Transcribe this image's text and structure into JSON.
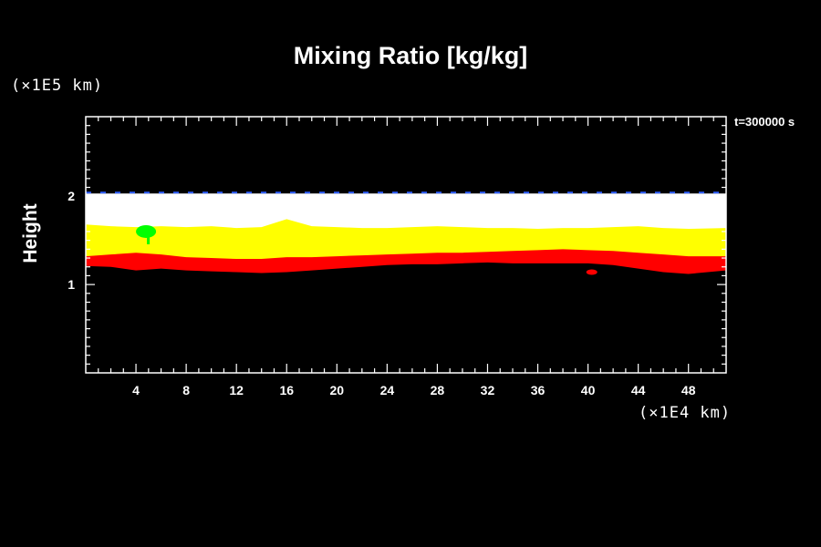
{
  "chart_data": {
    "type": "heatmap",
    "title": "Mixing Ratio [kg/kg]",
    "xlabel": "",
    "ylabel": "Height",
    "x_unit": "(×1E4 km)",
    "y_unit": "(×1E5 km)",
    "time_label": "t=300000 s",
    "xlim": [
      0,
      51
    ],
    "ylim": [
      0,
      2.9
    ],
    "x_ticks": [
      4,
      8,
      12,
      16,
      20,
      24,
      28,
      32,
      36,
      40,
      44,
      48
    ],
    "y_ticks": [
      1,
      2
    ],
    "bands": [
      {
        "color": "#ffffff",
        "top": [
          2.03,
          2.03,
          2.03,
          2.03,
          2.03,
          2.03,
          2.03,
          2.03,
          2.03,
          2.03,
          2.03,
          2.03,
          2.03,
          2.03,
          2.03,
          2.03,
          2.03,
          2.03,
          2.03,
          2.03,
          2.03,
          2.03,
          2.03,
          2.03,
          2.03,
          2.03
        ]
      },
      {
        "color": "#ffff00",
        "top": [
          1.68,
          1.66,
          1.65,
          1.66,
          1.65,
          1.66,
          1.64,
          1.65,
          1.74,
          1.66,
          1.65,
          1.64,
          1.64,
          1.65,
          1.66,
          1.65,
          1.64,
          1.64,
          1.63,
          1.64,
          1.64,
          1.65,
          1.66,
          1.64,
          1.63,
          1.64
        ]
      },
      {
        "color": "#ff0000",
        "top": [
          1.32,
          1.34,
          1.36,
          1.34,
          1.31,
          1.3,
          1.29,
          1.29,
          1.31,
          1.31,
          1.32,
          1.33,
          1.34,
          1.35,
          1.36,
          1.36,
          1.37,
          1.38,
          1.39,
          1.4,
          1.39,
          1.38,
          1.36,
          1.34,
          1.32,
          1.32
        ]
      },
      {
        "color": "#000000",
        "top": [
          1.21,
          1.2,
          1.16,
          1.18,
          1.16,
          1.15,
          1.14,
          1.13,
          1.14,
          1.16,
          1.18,
          1.2,
          1.22,
          1.23,
          1.23,
          1.24,
          1.25,
          1.24,
          1.24,
          1.24,
          1.24,
          1.22,
          1.18,
          1.14,
          1.12,
          1.16
        ]
      }
    ],
    "band_x": [
      0,
      2,
      4,
      6,
      8,
      10,
      12,
      14,
      16,
      18,
      20,
      22,
      24,
      26,
      28,
      30,
      32,
      34,
      36,
      38,
      40,
      42,
      44,
      46,
      48,
      51
    ],
    "features": [
      {
        "color": "#00ff00",
        "x": 4.8,
        "y": 1.6,
        "label": "green patch"
      },
      {
        "color": "#ff0000",
        "x": 40.3,
        "y": 1.14,
        "label": "red spot"
      }
    ],
    "top_edge_color": "#3060ff"
  }
}
